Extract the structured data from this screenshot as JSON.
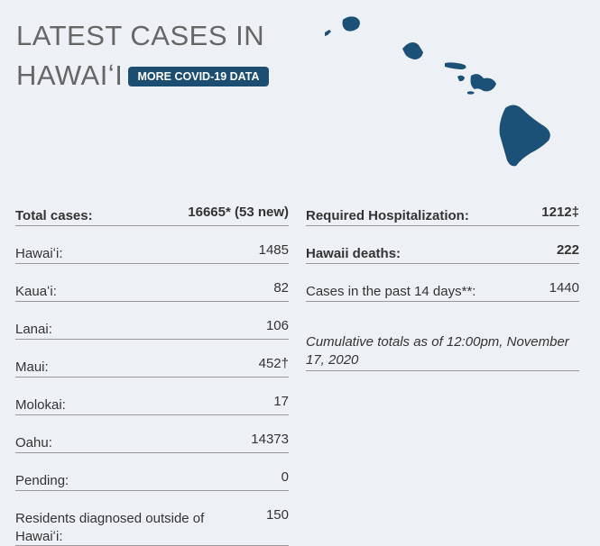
{
  "header": {
    "title_lines": [
      "LATEST CASES IN",
      "HAWAIʻI"
    ],
    "button": "MORE COVID-19 DATA"
  },
  "left_table": {
    "rows": [
      {
        "label": "Total cases:",
        "value": "16665* (53 new)",
        "bold": true
      },
      {
        "label": "Hawaiʻi:",
        "value": "1485"
      },
      {
        "label": "Kauaʻi:",
        "value": "82"
      },
      {
        "label": "Lanai:",
        "value": "106"
      },
      {
        "label": "Maui:",
        "value": "452†"
      },
      {
        "label": "Molokai:",
        "value": "17"
      },
      {
        "label": "Oahu:",
        "value": "14373"
      },
      {
        "label": "Pending:",
        "value": "0"
      },
      {
        "label": "Residents diagnosed outside of Hawaiʻi:",
        "value": "150"
      }
    ]
  },
  "right_table": {
    "rows": [
      {
        "label": "Required Hospitalization:",
        "value": "1212‡",
        "bold": true
      },
      {
        "label": "Hawaii deaths:",
        "value": "222",
        "bold": true
      },
      {
        "label": "Cases in the past 14 days**:",
        "value": "1440"
      }
    ],
    "note": "Cumulative totals as of 12:00pm, November 17, 2020"
  }
}
